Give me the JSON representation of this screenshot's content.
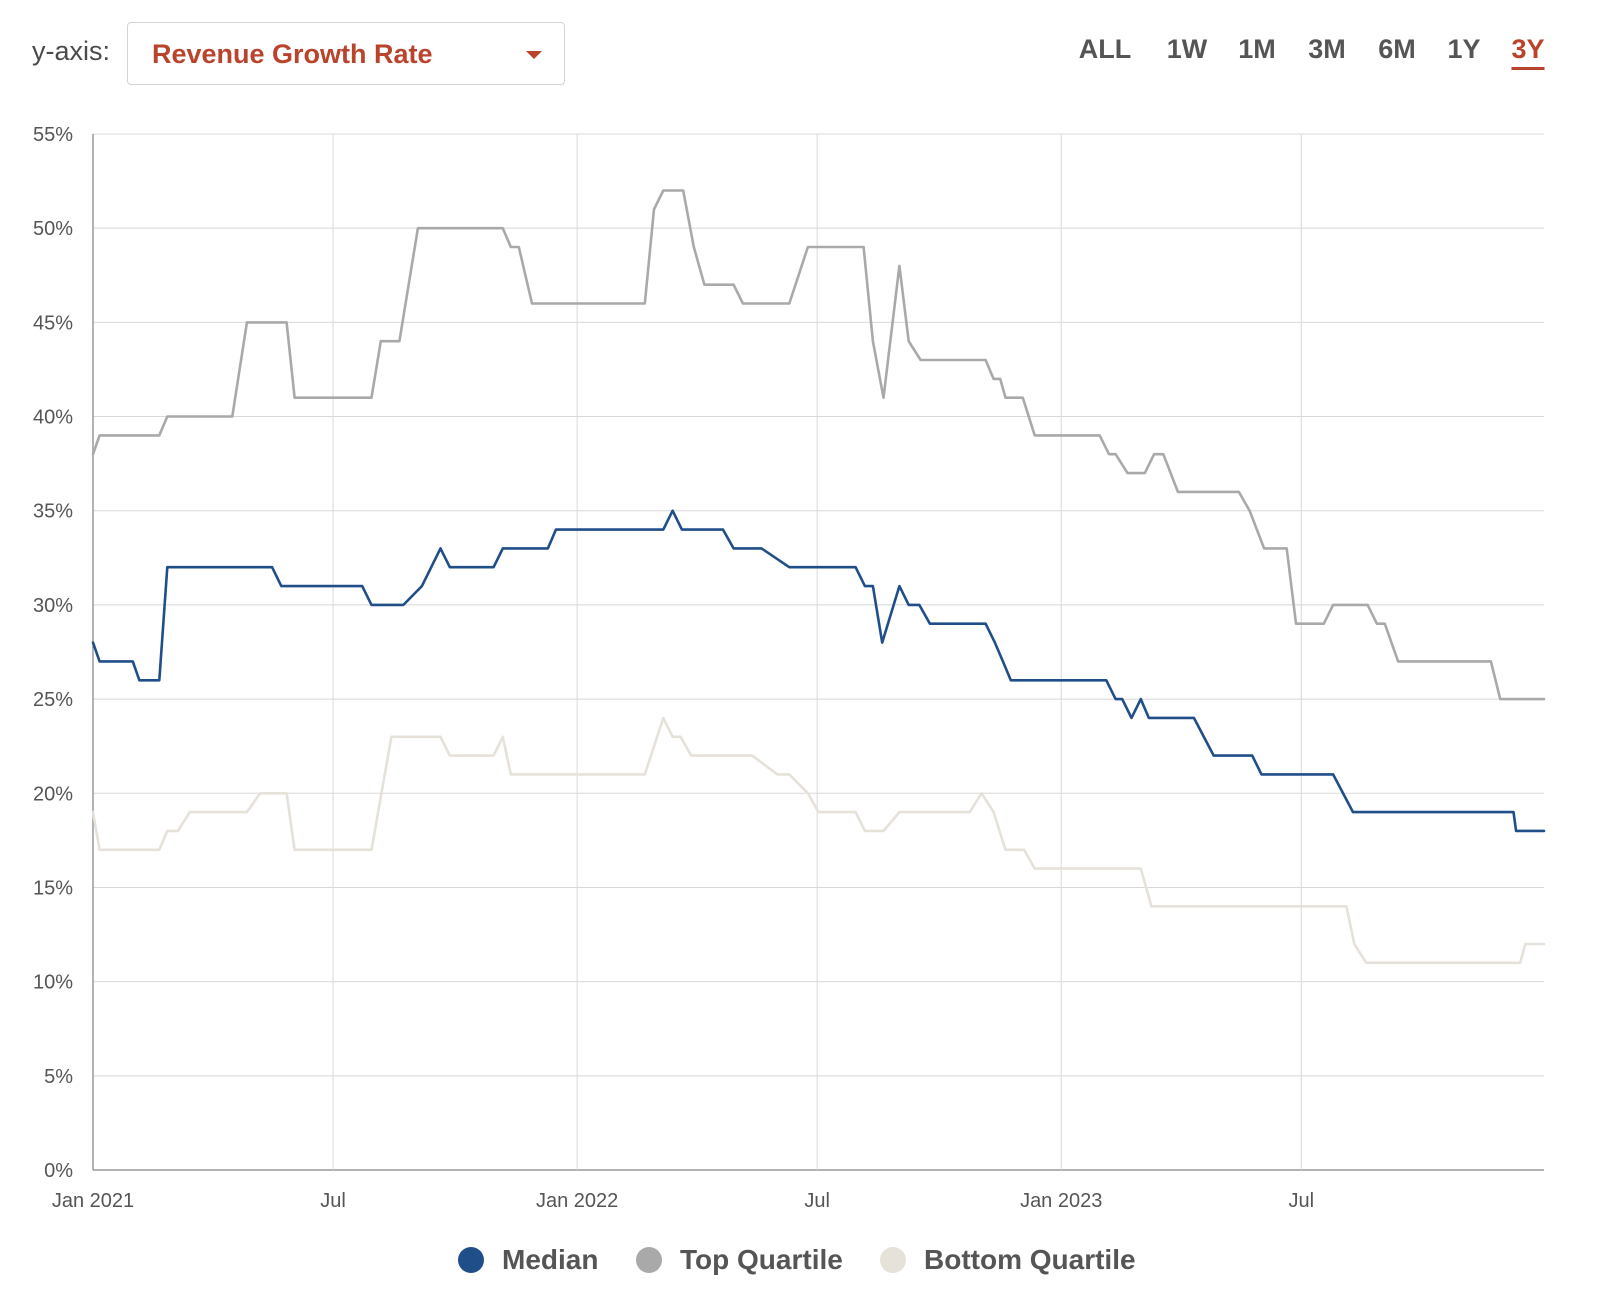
{
  "controls": {
    "yaxis_label": "y-axis:",
    "metric_selected": "Revenue Growth Rate",
    "ranges": [
      "ALL",
      "1W",
      "1M",
      "3M",
      "6M",
      "1Y",
      "3Y"
    ],
    "active_range": "3Y",
    "accent_color": "#b9432b"
  },
  "chart_data": {
    "type": "line",
    "title": "",
    "xlabel": "",
    "ylabel": "",
    "x_axis_type": "date",
    "xlim": [
      "2021-01-01",
      "2023-12-31"
    ],
    "ylim": [
      0,
      55
    ],
    "y_unit": "%",
    "y_ticks": [
      0,
      5,
      10,
      15,
      20,
      25,
      30,
      35,
      40,
      45,
      50,
      55
    ],
    "y_tick_labels": [
      "0%",
      "5%",
      "10%",
      "15%",
      "20%",
      "25%",
      "30%",
      "35%",
      "40%",
      "45%",
      "50%",
      "55%"
    ],
    "x_ticks": [
      "2021-01-01",
      "2021-07-01",
      "2022-01-01",
      "2022-07-01",
      "2023-01-01",
      "2023-07-01"
    ],
    "x_tick_labels": [
      "Jan 2021",
      "Jul",
      "Jan 2022",
      "Jul",
      "Jan 2023",
      "Jul"
    ],
    "grid": true,
    "legend_position": "bottom-center",
    "series": [
      {
        "name": "Median",
        "color": "#1f4e89",
        "points": [
          [
            "2021-01-01",
            28
          ],
          [
            "2021-01-06",
            27
          ],
          [
            "2021-01-31",
            27
          ],
          [
            "2021-02-05",
            26
          ],
          [
            "2021-02-20",
            26
          ],
          [
            "2021-02-26",
            32
          ],
          [
            "2021-05-16",
            32
          ],
          [
            "2021-05-23",
            31
          ],
          [
            "2021-07-23",
            31
          ],
          [
            "2021-07-30",
            30
          ],
          [
            "2021-08-23",
            30
          ],
          [
            "2021-09-06",
            31
          ],
          [
            "2021-09-20",
            33
          ],
          [
            "2021-09-27",
            32
          ],
          [
            "2021-10-30",
            32
          ],
          [
            "2021-11-06",
            33
          ],
          [
            "2021-12-10",
            33
          ],
          [
            "2021-12-16",
            34
          ],
          [
            "2022-03-07",
            34
          ],
          [
            "2022-03-14",
            35
          ],
          [
            "2022-03-21",
            34
          ],
          [
            "2022-04-21",
            34
          ],
          [
            "2022-04-29",
            33
          ],
          [
            "2022-05-20",
            33
          ],
          [
            "2022-06-10",
            32
          ],
          [
            "2022-07-30",
            32
          ],
          [
            "2022-08-06",
            31
          ],
          [
            "2022-08-12",
            31
          ],
          [
            "2022-08-19",
            28
          ],
          [
            "2022-09-01",
            31
          ],
          [
            "2022-09-08",
            30
          ],
          [
            "2022-09-16",
            30
          ],
          [
            "2022-09-24",
            29
          ],
          [
            "2022-11-05",
            29
          ],
          [
            "2022-11-12",
            28
          ],
          [
            "2022-11-18",
            27
          ],
          [
            "2022-11-24",
            26
          ],
          [
            "2023-02-04",
            26
          ],
          [
            "2023-02-11",
            25
          ],
          [
            "2023-02-16",
            25
          ],
          [
            "2023-02-23",
            24
          ],
          [
            "2023-03-02",
            25
          ],
          [
            "2023-03-08",
            24
          ],
          [
            "2023-04-11",
            24
          ],
          [
            "2023-04-26",
            22
          ],
          [
            "2023-05-25",
            22
          ],
          [
            "2023-06-01",
            21
          ],
          [
            "2023-07-25",
            21
          ],
          [
            "2023-08-09",
            19
          ],
          [
            "2023-12-08",
            19
          ],
          [
            "2023-12-10",
            18
          ],
          [
            "2023-12-31",
            18
          ]
        ]
      },
      {
        "name": "Top Quartile",
        "color": "#a9a9a9",
        "points": [
          [
            "2021-01-01",
            38
          ],
          [
            "2021-01-06",
            39
          ],
          [
            "2021-02-20",
            39
          ],
          [
            "2021-02-26",
            40
          ],
          [
            "2021-04-16",
            40
          ],
          [
            "2021-04-27",
            45
          ],
          [
            "2021-05-27",
            45
          ],
          [
            "2021-06-02",
            41
          ],
          [
            "2021-07-30",
            41
          ],
          [
            "2021-08-06",
            44
          ],
          [
            "2021-08-20",
            44
          ],
          [
            "2021-09-03",
            50
          ],
          [
            "2021-11-06",
            50
          ],
          [
            "2021-11-12",
            49
          ],
          [
            "2021-11-18",
            49
          ],
          [
            "2021-11-28",
            46
          ],
          [
            "2022-02-21",
            46
          ],
          [
            "2022-02-28",
            51
          ],
          [
            "2022-03-07",
            52
          ],
          [
            "2022-03-22",
            52
          ],
          [
            "2022-03-30",
            49
          ],
          [
            "2022-04-07",
            47
          ],
          [
            "2022-04-29",
            47
          ],
          [
            "2022-05-06",
            46
          ],
          [
            "2022-06-10",
            46
          ],
          [
            "2022-06-24",
            49
          ],
          [
            "2022-08-05",
            49
          ],
          [
            "2022-08-12",
            44
          ],
          [
            "2022-08-20",
            41
          ],
          [
            "2022-09-01",
            48
          ],
          [
            "2022-09-08",
            44
          ],
          [
            "2022-09-17",
            43
          ],
          [
            "2022-11-05",
            43
          ],
          [
            "2022-11-11",
            42
          ],
          [
            "2022-11-16",
            42
          ],
          [
            "2022-11-20",
            41
          ],
          [
            "2022-12-03",
            41
          ],
          [
            "2022-12-12",
            39
          ],
          [
            "2023-01-30",
            39
          ],
          [
            "2023-02-06",
            38
          ],
          [
            "2023-02-11",
            38
          ],
          [
            "2023-02-20",
            37
          ],
          [
            "2023-03-05",
            37
          ],
          [
            "2023-03-12",
            38
          ],
          [
            "2023-03-19",
            38
          ],
          [
            "2023-03-30",
            36
          ],
          [
            "2023-05-15",
            36
          ],
          [
            "2023-05-23",
            35
          ],
          [
            "2023-06-03",
            33
          ],
          [
            "2023-06-20",
            33
          ],
          [
            "2023-06-27",
            29
          ],
          [
            "2023-07-18",
            29
          ],
          [
            "2023-07-25",
            30
          ],
          [
            "2023-08-20",
            30
          ],
          [
            "2023-08-27",
            29
          ],
          [
            "2023-09-02",
            29
          ],
          [
            "2023-09-12",
            27
          ],
          [
            "2023-11-21",
            27
          ],
          [
            "2023-11-28",
            25
          ],
          [
            "2023-12-31",
            25
          ]
        ]
      },
      {
        "name": "Bottom Quartile",
        "color": "#e6e2da",
        "points": [
          [
            "2021-01-01",
            19
          ],
          [
            "2021-01-06",
            17
          ],
          [
            "2021-02-20",
            17
          ],
          [
            "2021-02-26",
            18
          ],
          [
            "2021-03-06",
            18
          ],
          [
            "2021-03-15",
            19
          ],
          [
            "2021-04-27",
            19
          ],
          [
            "2021-05-07",
            20
          ],
          [
            "2021-05-27",
            20
          ],
          [
            "2021-06-02",
            17
          ],
          [
            "2021-07-30",
            17
          ],
          [
            "2021-08-14",
            23
          ],
          [
            "2021-09-20",
            23
          ],
          [
            "2021-09-27",
            22
          ],
          [
            "2021-10-30",
            22
          ],
          [
            "2021-11-06",
            23
          ],
          [
            "2021-11-12",
            21
          ],
          [
            "2022-02-21",
            21
          ],
          [
            "2022-03-07",
            24
          ],
          [
            "2022-03-14",
            23
          ],
          [
            "2022-03-20",
            23
          ],
          [
            "2022-03-28",
            22
          ],
          [
            "2022-05-13",
            22
          ],
          [
            "2022-06-01",
            21
          ],
          [
            "2022-06-10",
            21
          ],
          [
            "2022-06-24",
            20
          ],
          [
            "2022-07-02",
            19
          ],
          [
            "2022-07-30",
            19
          ],
          [
            "2022-08-06",
            18
          ],
          [
            "2022-08-20",
            18
          ],
          [
            "2022-09-01",
            19
          ],
          [
            "2022-10-24",
            19
          ],
          [
            "2022-11-02",
            20
          ],
          [
            "2022-11-11",
            19
          ],
          [
            "2022-11-20",
            17
          ],
          [
            "2022-12-04",
            17
          ],
          [
            "2022-12-12",
            16
          ],
          [
            "2023-03-02",
            16
          ],
          [
            "2023-03-10",
            14
          ],
          [
            "2023-08-04",
            14
          ],
          [
            "2023-08-10",
            12
          ],
          [
            "2023-08-19",
            11
          ],
          [
            "2023-12-13",
            11
          ],
          [
            "2023-12-17",
            12
          ],
          [
            "2023-12-31",
            12
          ]
        ]
      }
    ]
  }
}
